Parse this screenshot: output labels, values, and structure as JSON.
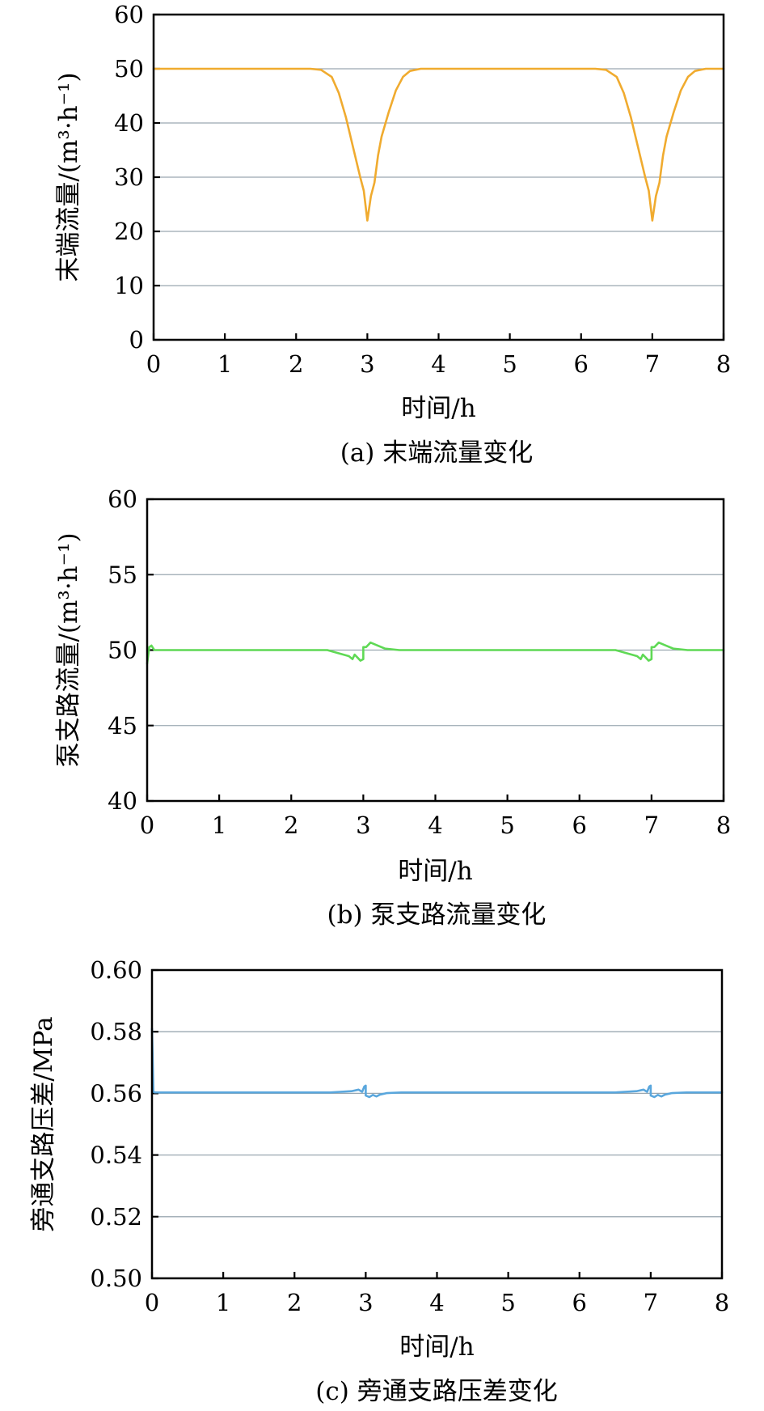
{
  "colors": {
    "panel_a": "#f0ab2f",
    "panel_b": "#5fd955",
    "panel_c": "#5aa7dd",
    "grid": "#9aa7b0"
  },
  "chart_data": [
    {
      "type": "line",
      "caption": "(a) 末端流量变化",
      "xlabel": "时间/h",
      "ylabel": "末端流量/(m³·h⁻¹)",
      "xlim": [
        0,
        8
      ],
      "ylim": [
        0,
        60
      ],
      "xticks": [
        "0",
        "1",
        "2",
        "3",
        "4",
        "5",
        "6",
        "7",
        "8"
      ],
      "yticks": [
        "0",
        "10",
        "20",
        "30",
        "40",
        "50",
        "60"
      ],
      "grid": true,
      "series": [
        {
          "x": [
            0,
            2.2,
            2.35,
            2.5,
            2.6,
            2.7,
            2.8,
            2.9,
            2.95,
            3.0,
            3.05,
            3.1,
            3.15,
            3.2,
            3.3,
            3.4,
            3.5,
            3.6,
            3.75,
            4.0,
            6.2,
            6.35,
            6.5,
            6.6,
            6.7,
            6.8,
            6.9,
            6.95,
            7.0,
            7.05,
            7.1,
            7.15,
            7.2,
            7.3,
            7.4,
            7.5,
            7.6,
            7.75,
            8.0
          ],
          "y": [
            50,
            50,
            49.8,
            48.5,
            45.5,
            41,
            35.5,
            30,
            27.5,
            22,
            26.5,
            29,
            34,
            37.5,
            42,
            46,
            48.5,
            49.6,
            50,
            50,
            50,
            49.8,
            48.5,
            45.5,
            41,
            35.5,
            30,
            27.5,
            22,
            26.5,
            29,
            34,
            37.5,
            42,
            46,
            48.5,
            49.6,
            50,
            50
          ]
        }
      ]
    },
    {
      "type": "line",
      "caption": "(b) 泵支路流量变化",
      "xlabel": "时间/h",
      "ylabel": "泵支路流量/(m³·h⁻¹)",
      "xlim": [
        0,
        8
      ],
      "ylim": [
        40,
        60
      ],
      "xticks": [
        "0",
        "1",
        "2",
        "3",
        "4",
        "5",
        "6",
        "7",
        "8"
      ],
      "yticks": [
        "40",
        "45",
        "50",
        "55",
        "60"
      ],
      "grid": true,
      "series": [
        {
          "x": [
            0,
            0.03,
            0.06,
            0.1,
            0.15,
            2.5,
            2.65,
            2.8,
            2.85,
            2.88,
            2.92,
            2.96,
            3.0,
            3.0,
            3.04,
            3.08,
            3.1,
            3.15,
            3.2,
            3.3,
            3.5,
            6.5,
            6.65,
            6.8,
            6.85,
            6.88,
            6.92,
            6.96,
            7.0,
            7.0,
            7.04,
            7.08,
            7.1,
            7.15,
            7.2,
            7.3,
            7.5,
            8.0
          ],
          "y": [
            49.1,
            50.2,
            50.3,
            50.0,
            50.0,
            50.0,
            49.8,
            49.6,
            49.4,
            49.7,
            49.5,
            49.3,
            49.4,
            50.2,
            50.2,
            50.4,
            50.5,
            50.4,
            50.3,
            50.1,
            50.0,
            50.0,
            49.8,
            49.6,
            49.4,
            49.7,
            49.5,
            49.3,
            49.4,
            50.2,
            50.2,
            50.4,
            50.5,
            50.4,
            50.3,
            50.1,
            50.0,
            50.0
          ]
        }
      ]
    },
    {
      "type": "line",
      "caption": "(c) 旁通支路压差变化",
      "xlabel": "时间/h",
      "ylabel": "旁通支路压差/MPa",
      "xlim": [
        0,
        8
      ],
      "ylim": [
        0.5,
        0.6
      ],
      "xticks": [
        "0",
        "1",
        "2",
        "3",
        "4",
        "5",
        "6",
        "7",
        "8"
      ],
      "yticks": [
        "0.50",
        "0.52",
        "0.54",
        "0.56",
        "0.58",
        "0.60"
      ],
      "grid": true,
      "series": [
        {
          "x": [
            0,
            0.02,
            0.04,
            2.5,
            2.8,
            2.9,
            2.95,
            2.98,
            3.0,
            3.0,
            3.05,
            3.1,
            3.15,
            3.2,
            3.3,
            3.5,
            6.5,
            6.8,
            6.9,
            6.95,
            6.98,
            7.0,
            7.0,
            7.05,
            7.1,
            7.15,
            7.2,
            7.3,
            7.5,
            8.0
          ],
          "y": [
            0.581,
            0.5605,
            0.5603,
            0.5603,
            0.5607,
            0.5612,
            0.5605,
            0.5622,
            0.5625,
            0.5593,
            0.5588,
            0.5595,
            0.559,
            0.5596,
            0.5601,
            0.5603,
            0.5603,
            0.5607,
            0.5612,
            0.5605,
            0.5622,
            0.5625,
            0.5593,
            0.5588,
            0.5595,
            0.559,
            0.5596,
            0.5601,
            0.5603,
            0.5603
          ]
        }
      ]
    }
  ]
}
